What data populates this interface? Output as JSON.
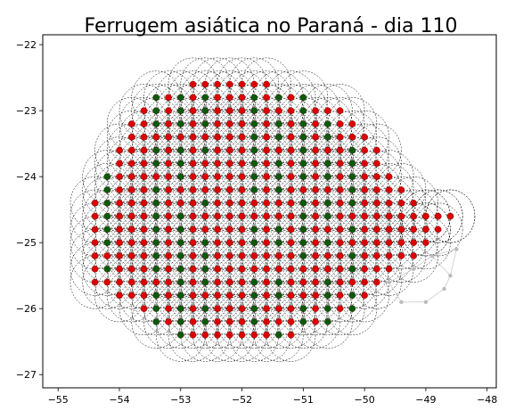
{
  "chart_data": {
    "type": "scatter",
    "title": "Ferrugem asiática no Paraná - dia 110",
    "xlabel": "",
    "ylabel": "",
    "xlim": [
      -55.25,
      -47.85
    ],
    "ylim": [
      -27.2,
      -21.85
    ],
    "xticks": [
      -55,
      -54,
      -53,
      -52,
      -51,
      -50,
      -49,
      -48
    ],
    "yticks": [
      -22,
      -23,
      -24,
      -25,
      -26,
      -27
    ],
    "xtick_labels": [
      "−55",
      "−54",
      "−53",
      "−52",
      "−51",
      "−50",
      "−49",
      "−48"
    ],
    "ytick_labels": [
      "−22",
      "−23",
      "−24",
      "−25",
      "−26",
      "−27"
    ],
    "grid": false,
    "legend": "none",
    "grid_spacing_deg": 0.2,
    "circle_radius_deg": 0.4,
    "colors": {
      "infected": "#dd0000",
      "healthy": "#0a5a0a",
      "circle_edge": "#000000",
      "outlier_points": "#bbbbbb"
    },
    "series": [
      {
        "status": "infected",
        "count": "majority"
      },
      {
        "status": "healthy",
        "count": "minority"
      }
    ],
    "healthy_longitude_bands": [
      -54.2,
      -53.4,
      -53.0,
      -52.6,
      -51.8,
      -51.4,
      -51.0,
      -50.6,
      -50.2
    ],
    "right_edge_points": [
      [
        -49.0,
        -24.6
      ],
      [
        -48.8,
        -24.6
      ],
      [
        -48.6,
        -24.6
      ],
      [
        -49.0,
        -24.8
      ]
    ],
    "cluster_points_grey": [
      [
        -49.6,
        -25.6
      ],
      [
        -49.2,
        -25.4
      ],
      [
        -48.9,
        -25.2
      ],
      [
        -48.6,
        -25.5
      ],
      [
        -48.5,
        -25.1
      ],
      [
        -49.4,
        -25.9
      ],
      [
        -48.7,
        -25.7
      ],
      [
        -49.0,
        -25.9
      ]
    ]
  }
}
